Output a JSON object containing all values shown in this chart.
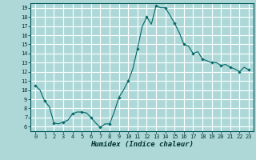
{
  "title": "",
  "xlabel": "Humidex (Indice chaleur)",
  "ylabel": "",
  "background_color": "#aed8d8",
  "grid_color": "#ffffff",
  "line_color": "#006666",
  "marker_color": "#006666",
  "xlim": [
    -0.5,
    23.5
  ],
  "ylim": [
    5.5,
    19.5
  ],
  "yticks": [
    6,
    7,
    8,
    9,
    10,
    11,
    12,
    13,
    14,
    15,
    16,
    17,
    18,
    19
  ],
  "xticks": [
    0,
    1,
    2,
    3,
    4,
    5,
    6,
    7,
    8,
    9,
    10,
    11,
    12,
    13,
    14,
    15,
    16,
    17,
    18,
    19,
    20,
    21,
    22,
    23
  ],
  "x": [
    0,
    0.5,
    1,
    1.5,
    2,
    2.5,
    3,
    3.5,
    4,
    4.5,
    5,
    5.5,
    6,
    6.5,
    7,
    7.5,
    8,
    8.5,
    9,
    9.5,
    10,
    10.5,
    11,
    11.5,
    12,
    12.5,
    13,
    13.5,
    14,
    14.5,
    15,
    15.5,
    16,
    16.5,
    17,
    17.5,
    18,
    18.5,
    19,
    19.5,
    20,
    20.5,
    21,
    21.5,
    22,
    22.5,
    23
  ],
  "y": [
    10.5,
    10.0,
    8.8,
    8.2,
    6.4,
    6.3,
    6.5,
    6.7,
    7.4,
    7.6,
    7.6,
    7.5,
    7.0,
    6.4,
    5.9,
    6.3,
    6.3,
    7.6,
    9.2,
    10.0,
    11.0,
    12.3,
    14.5,
    16.9,
    18.0,
    17.2,
    19.2,
    19.0,
    19.0,
    18.2,
    17.3,
    16.3,
    15.0,
    14.8,
    14.0,
    14.2,
    13.4,
    13.2,
    13.0,
    13.0,
    12.7,
    12.8,
    12.5,
    12.3,
    12.0,
    12.5,
    12.2
  ]
}
